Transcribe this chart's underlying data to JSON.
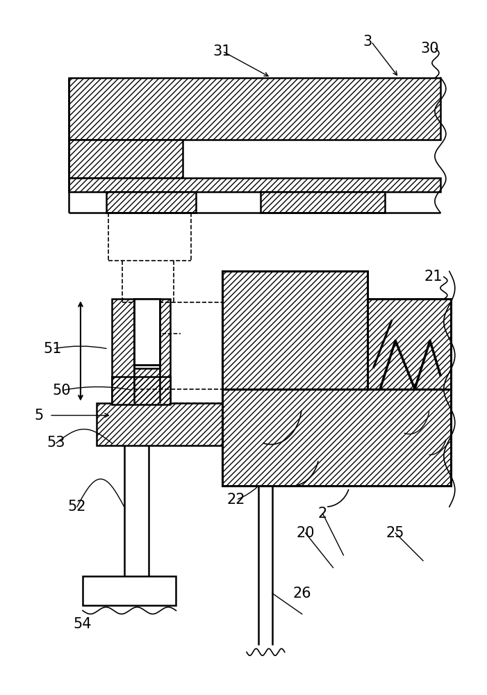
{
  "bg_color": "#ffffff",
  "lc": "#000000",
  "figsize": [
    7.01,
    10.0
  ],
  "dpi": 100
}
